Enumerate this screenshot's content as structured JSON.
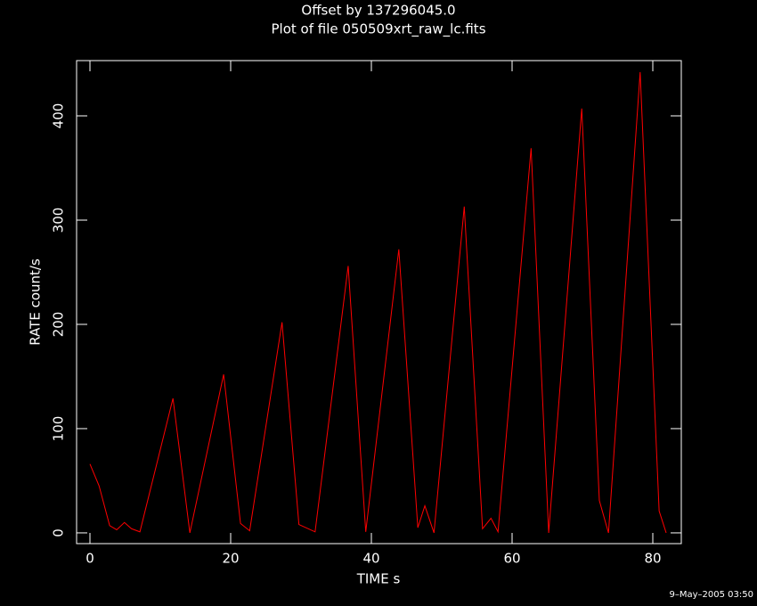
{
  "chart_data": {
    "type": "line",
    "title": "Offset by 137296045.0",
    "subtitle": "Plot of file 050509xrt_raw_lc.fits",
    "x_label": "TIME  s",
    "y_label": "RATE  count/s",
    "timestamp": "9–May–2005 03:50",
    "color": "#ff0000",
    "x": [
      0,
      1.3,
      2.8,
      3.8,
      4.9,
      5.9,
      7.1,
      11.8,
      14.2,
      19,
      21.4,
      22.7,
      27.3,
      29.7,
      32,
      36.7,
      39.2,
      43.9,
      46.6,
      47.6,
      48.9,
      53.2,
      55.8,
      57,
      58,
      62.7,
      65.2,
      69.9,
      72.4,
      73.7,
      78.2,
      80.9,
      81.9
    ],
    "values": [
      66,
      45,
      7,
      3,
      10,
      4,
      1,
      129,
      0,
      152,
      9,
      2,
      202,
      8,
      1,
      256,
      1,
      272,
      5,
      26,
      0,
      313,
      4,
      14,
      1,
      369,
      0,
      407,
      31,
      0,
      442,
      21,
      0
    ],
    "xlim": [
      -1.9,
      84.05
    ],
    "ylim": [
      -10.3,
      453
    ],
    "xticks": [
      0,
      20,
      40,
      60,
      80
    ],
    "yticks": [
      0,
      100,
      200,
      300,
      400
    ]
  }
}
